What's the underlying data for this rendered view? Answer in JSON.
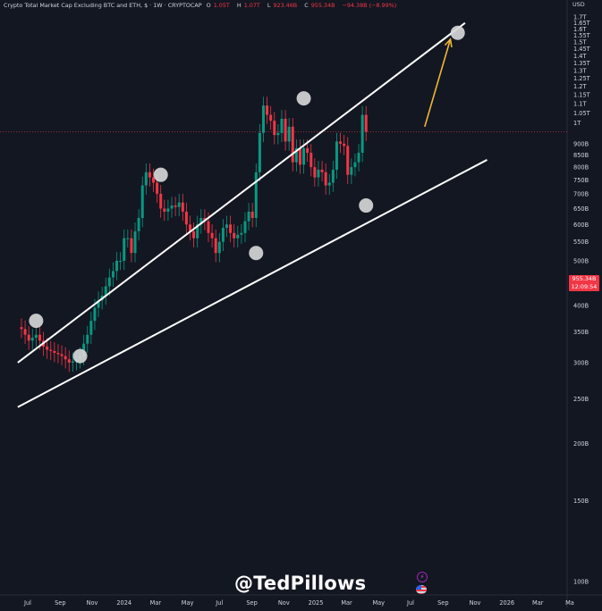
{
  "header": {
    "title": "Crypto Total Market Cap Excluding BTC and ETH, $ · 1W · CRYPTOCAP",
    "ohlc": [
      {
        "label": "O",
        "value": "1.05T"
      },
      {
        "label": "H",
        "value": "1.07T"
      },
      {
        "label": "L",
        "value": "923.46B"
      },
      {
        "label": "C",
        "value": "955.34B"
      }
    ],
    "change": "−94.38B (−8.99%)",
    "currency": "USD"
  },
  "price_tag": {
    "price": "955.34B",
    "countdown": "12:09:54"
  },
  "watermark": "@TedPillows",
  "icons": [
    "lightning-icon",
    "us-flag-icon"
  ],
  "colors": {
    "background": "#131722",
    "up": "#089981",
    "down": "#f23645",
    "trendline": "#ffffff",
    "arrow": "#f0b537",
    "touch_marker": "#d9d9d9",
    "axis_text": "#d1d4dc"
  },
  "chart_data": {
    "type": "candlestick",
    "scale": "log",
    "y_axis_labels": [
      "1.7T",
      "1.65T",
      "1.6T",
      "1.55T",
      "1.5T",
      "1.45T",
      "1.4T",
      "1.35T",
      "1.3T",
      "1.25T",
      "1.2T",
      "1.15T",
      "1.1T",
      "1.05T",
      "1T",
      "900B",
      "850B",
      "800B",
      "750B",
      "700B",
      "650B",
      "600B",
      "550B",
      "500B",
      "450B",
      "400B",
      "350B",
      "300B",
      "250B",
      "200B",
      "150B",
      "100B"
    ],
    "y_axis_values": [
      1700,
      1650,
      1600,
      1550,
      1500,
      1450,
      1400,
      1350,
      1300,
      1250,
      1200,
      1150,
      1100,
      1050,
      1000,
      900,
      850,
      800,
      750,
      700,
      650,
      600,
      550,
      500,
      450,
      400,
      350,
      300,
      250,
      200,
      150,
      100
    ],
    "x_axis_labels": [
      "Jul",
      "Sep",
      "Nov",
      "2024",
      "Mar",
      "May",
      "Jul",
      "Sep",
      "Nov",
      "2025",
      "Mar",
      "May",
      "Jul",
      "Sep",
      "Nov",
      "2026",
      "Mar",
      "Ma"
    ],
    "x_axis_dates": [
      "2023-07-01",
      "2023-09-01",
      "2023-11-01",
      "2024-01-01",
      "2024-03-01",
      "2024-05-01",
      "2024-07-01",
      "2024-09-01",
      "2024-11-01",
      "2025-01-01",
      "2025-03-01",
      "2025-05-01",
      "2025-07-01",
      "2025-09-01",
      "2025-11-01",
      "2026-01-01",
      "2026-03-01",
      "2026-05-01"
    ],
    "candle_interval": "1W",
    "candles_start": "2023-06-19",
    "candles_close": [
      355,
      345,
      335,
      340,
      345,
      335,
      325,
      320,
      318,
      315,
      313,
      310,
      305,
      300,
      302,
      305,
      310,
      330,
      345,
      370,
      395,
      410,
      420,
      440,
      460,
      475,
      500,
      500,
      560,
      560,
      520,
      580,
      620,
      730,
      780,
      760,
      740,
      700,
      650,
      640,
      650,
      660,
      655,
      670,
      640,
      600,
      580,
      560,
      600,
      620,
      610,
      575,
      560,
      520,
      550,
      590,
      600,
      575,
      560,
      570,
      575,
      610,
      640,
      620,
      780,
      950,
      1090,
      1040,
      1010,
      940,
      950,
      1020,
      910,
      980,
      820,
      880,
      810,
      880,
      860,
      800,
      760,
      790,
      780,
      730,
      740,
      790,
      910,
      900,
      890,
      770,
      800,
      820,
      860,
      1040,
      955
    ],
    "trendlines": [
      {
        "name": "upper-resistance",
        "from": {
          "date": "2023-06-12",
          "value": 300
        },
        "to": {
          "date": "2025-10-13",
          "value": 1650
        }
      },
      {
        "name": "lower-support",
        "from": {
          "date": "2023-06-12",
          "value": 240
        },
        "to": {
          "date": "2025-11-24",
          "value": 830
        }
      }
    ],
    "touch_points": [
      {
        "date": "2023-07-17",
        "value": 370
      },
      {
        "date": "2023-10-09",
        "value": 310
      },
      {
        "date": "2024-03-11",
        "value": 770
      },
      {
        "date": "2024-09-09",
        "value": 520
      },
      {
        "date": "2024-12-09",
        "value": 1130
      },
      {
        "date": "2025-04-07",
        "value": 660
      },
      {
        "date": "2025-09-29",
        "value": 1570
      }
    ],
    "projection_arrow": {
      "from": {
        "date": "2025-07-28",
        "value": 980
      },
      "to": {
        "date": "2025-09-15",
        "value": 1520
      }
    },
    "current_price_line": 955.34
  }
}
